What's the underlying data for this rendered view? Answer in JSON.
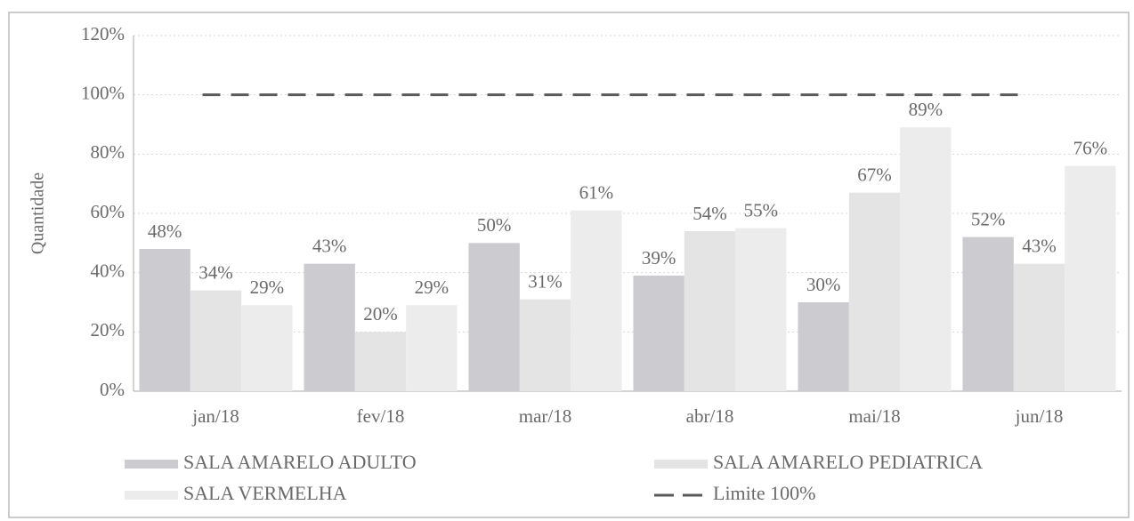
{
  "chart_data": {
    "type": "bar",
    "y_label": "Quantidade",
    "categories": [
      "jan/18",
      "fev/18",
      "mar/18",
      "abr/18",
      "mai/18",
      "jun/18"
    ],
    "series": [
      {
        "name": "SALA AMARELO ADULTO",
        "color": "#cbcbd0",
        "values": [
          48,
          43,
          50,
          39,
          30,
          52
        ],
        "value_labels": [
          "48%",
          "43%",
          "50%",
          "39%",
          "30%",
          "52%"
        ]
      },
      {
        "name": "SALA AMARELO PEDIATRICA",
        "color": "#e4e4e4",
        "values": [
          34,
          20,
          31,
          54,
          67,
          43
        ],
        "value_labels": [
          "34%",
          "20%",
          "31%",
          "54%",
          "67%",
          "43%"
        ]
      },
      {
        "name": "SALA VERMELHA",
        "color": "#ececec",
        "values": [
          29,
          29,
          61,
          55,
          89,
          76
        ],
        "value_labels": [
          "29%",
          "29%",
          "61%",
          "55%",
          "89%",
          "76%"
        ]
      },
      {
        "name": "Limite 100%",
        "type": "line",
        "dashed": true,
        "color": "#5a5a5a",
        "values": [
          100,
          100,
          100,
          100,
          100,
          100
        ]
      }
    ],
    "ylim": [
      0,
      120
    ],
    "yticks": [
      {
        "value": 0,
        "label": "0%"
      },
      {
        "value": 20,
        "label": "20%"
      },
      {
        "value": 40,
        "label": "40%"
      },
      {
        "value": 60,
        "label": "60%"
      },
      {
        "value": 80,
        "label": "80%"
      },
      {
        "value": 100,
        "label": "100%"
      },
      {
        "value": 120,
        "label": "120%"
      }
    ],
    "grid": true
  }
}
